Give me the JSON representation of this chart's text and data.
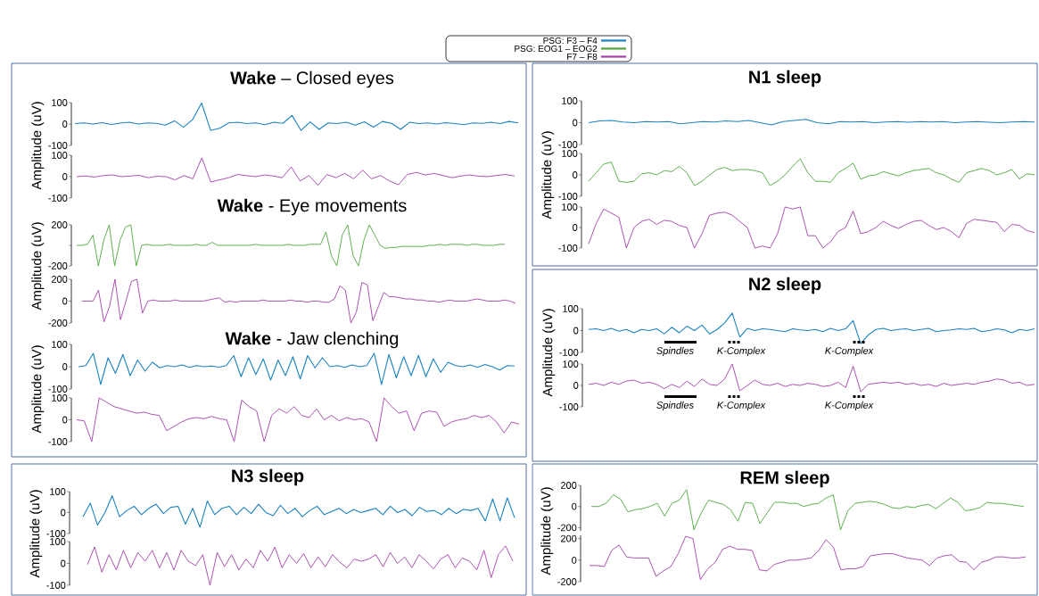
{
  "chart_data": [
    {
      "type": "line",
      "title": "**Wake** – Closed eyes",
      "ylabel": "Amplitude (uV)",
      "legend": "top",
      "tick_labels": "y",
      "ylim": [
        -100,
        100
      ],
      "yticks": [
        -100,
        0,
        100
      ],
      "categories": [
        null,
        null,
        null,
        null,
        null,
        null,
        null,
        null,
        null,
        null,
        null,
        null,
        null,
        null,
        null,
        null,
        null,
        null,
        null,
        null,
        null,
        null,
        null,
        null,
        null,
        null,
        null,
        null,
        null,
        null,
        null,
        null,
        null,
        null,
        null,
        null,
        null,
        null,
        null,
        null,
        null,
        null,
        null,
        null,
        null,
        null,
        null,
        null,
        null,
        null
      ],
      "series": [
        {
          "name": "PSG: F3 – F4",
          "color": "#1a82c2",
          "values": [
            2,
            5,
            0,
            6,
            -2,
            4,
            8,
            0,
            5,
            3,
            -5,
            15,
            -15,
            20,
            98,
            -30,
            -20,
            5,
            8,
            2,
            5,
            -3,
            8,
            3,
            40,
            -30,
            10,
            -25,
            5,
            2,
            8,
            -5,
            10,
            -15,
            12,
            3,
            -25,
            8,
            2,
            5,
            0,
            6,
            2,
            -3,
            5,
            3,
            8,
            2,
            12,
            5
          ]
        }
      ]
    },
    {
      "type": "line",
      "tick_labels": "y",
      "ylim": [
        -100,
        100
      ],
      "yticks": [
        -100,
        0,
        100
      ],
      "categories": [
        null,
        null,
        null,
        null,
        null,
        null,
        null,
        null,
        null,
        null,
        null,
        null,
        null,
        null,
        null,
        null,
        null,
        null,
        null,
        null,
        null,
        null,
        null,
        null,
        null,
        null,
        null,
        null,
        null,
        null,
        null,
        null,
        null,
        null,
        null,
        null,
        null,
        null,
        null,
        null,
        null,
        null,
        null,
        null,
        null,
        null,
        null,
        null,
        null,
        null
      ],
      "series": [
        {
          "color": "#a23fa8",
          "values": [
            0,
            3,
            -2,
            5,
            8,
            0,
            3,
            6,
            -5,
            2,
            0,
            -15,
            5,
            -10,
            88,
            -25,
            -15,
            -5,
            10,
            5,
            0,
            8,
            3,
            -5,
            45,
            -20,
            5,
            -40,
            10,
            -5,
            15,
            -10,
            30,
            -10,
            5,
            -20,
            -38,
            10,
            20,
            8,
            15,
            5,
            -5,
            3,
            8,
            2,
            0,
            6,
            10,
            3
          ]
        }
      ]
    },
    {
      "type": "line",
      "title": "**Wake** - Eye movements",
      "ylabel": "Amplitude (uV)",
      "legend": "top",
      "tick_labels": "y",
      "ylim": [
        -200,
        200
      ],
      "yticks": [
        -200,
        {
          "value": 0,
          "label": null
        },
        200
      ],
      "categories": [
        null,
        null,
        null,
        null,
        null,
        null,
        null,
        null,
        null,
        null,
        null,
        null,
        null,
        null,
        null,
        null,
        null,
        null,
        null,
        null,
        null,
        null,
        null,
        null,
        null,
        null,
        null,
        null,
        null,
        null,
        null,
        null,
        null,
        null,
        null,
        null,
        null,
        null,
        null,
        null,
        null,
        null,
        null,
        null,
        null,
        null,
        null,
        null,
        null,
        null,
        null,
        null,
        null,
        null,
        null,
        null,
        null,
        null,
        null,
        null,
        null,
        null,
        null,
        null,
        null,
        null,
        null,
        null,
        null,
        null,
        null,
        null,
        null,
        null,
        null,
        null,
        null,
        null,
        null,
        null
      ],
      "series": [
        {
          "name": "PSG: EOG1 – EOG2",
          "color": "#4ea63d",
          "values": [
            0,
            0,
            10,
            100,
            -200,
            50,
            200,
            -200,
            50,
            180,
            200,
            -200,
            0,
            10,
            0,
            0,
            0,
            10,
            0,
            0,
            0,
            0,
            10,
            0,
            0,
            30,
            0,
            0,
            0,
            0,
            0,
            0,
            0,
            10,
            0,
            0,
            0,
            0,
            0,
            10,
            0,
            0,
            0,
            10,
            10,
            10,
            130,
            -100,
            -200,
            100,
            200,
            -100,
            -200,
            50,
            200,
            100,
            0,
            -30,
            -20,
            -20,
            -10,
            -10,
            -10,
            -10,
            -10,
            0,
            0,
            10,
            0,
            10,
            10,
            10,
            0,
            10,
            10,
            0,
            0,
            0,
            10,
            10
          ]
        }
      ]
    },
    {
      "type": "line",
      "legend": "top",
      "tick_labels": "y",
      "ylim": [
        -200,
        200
      ],
      "yticks": [
        -200,
        0,
        200
      ],
      "categories": [
        null,
        null,
        null,
        null,
        null,
        null,
        null,
        null,
        null,
        null,
        null,
        null,
        null,
        null,
        null,
        null,
        null,
        null,
        null,
        null,
        null,
        null,
        null,
        null,
        null,
        null,
        null,
        null,
        null,
        null,
        null,
        null,
        null,
        null,
        null,
        null,
        null,
        null,
        null,
        null,
        null,
        null,
        null,
        null,
        null,
        null,
        null,
        null,
        null,
        null,
        null,
        null,
        null,
        null,
        null,
        null,
        null,
        null,
        null,
        null,
        null,
        null,
        null,
        null,
        null,
        null,
        null,
        null,
        null,
        null,
        null,
        null,
        null,
        null,
        null,
        null,
        null,
        null,
        null,
        null
      ],
      "series": [
        {
          "name": "F7 – F8",
          "color": "#a23fa8",
          "values": [
            0,
            0,
            0,
            100,
            -190,
            -50,
            200,
            -170,
            0,
            180,
            200,
            -110,
            0,
            10,
            0,
            0,
            0,
            10,
            0,
            0,
            0,
            0,
            0,
            10,
            20,
            30,
            -10,
            0,
            -10,
            0,
            0,
            0,
            0,
            10,
            0,
            0,
            0,
            0,
            10,
            0,
            0,
            -10,
            0,
            0,
            -10,
            -10,
            20,
            140,
            100,
            -200,
            -100,
            170,
            150,
            -180,
            -50,
            80,
            40,
            40,
            30,
            20,
            20,
            10,
            10,
            0,
            0,
            -10,
            0,
            10,
            0,
            0,
            0,
            10,
            20,
            10,
            0,
            0,
            0,
            10,
            0,
            -20
          ]
        }
      ]
    },
    {
      "type": "line",
      "title": "**Wake** - Jaw clenching",
      "ylabel": "Amplitude (uV)",
      "tick_labels": "y",
      "ylim": [
        -100,
        100
      ],
      "yticks": [
        -100,
        0,
        100
      ],
      "categories": [
        null,
        null,
        null,
        null,
        null,
        null,
        null,
        null,
        null,
        null,
        null,
        null,
        null,
        null,
        null,
        null,
        null,
        null,
        null,
        null,
        null,
        null,
        null,
        null,
        null,
        null,
        null,
        null,
        null,
        null,
        null,
        null,
        null,
        null,
        null,
        null,
        null,
        null,
        null,
        null,
        null,
        null,
        null,
        null,
        null,
        null,
        null,
        null,
        null,
        null,
        null,
        null,
        null,
        null,
        null,
        null,
        null,
        null,
        null,
        null
      ],
      "series": [
        {
          "color": "#1a82c2",
          "values": [
            0,
            5,
            60,
            -80,
            40,
            -30,
            55,
            -40,
            30,
            -20,
            20,
            -5,
            5,
            0,
            8,
            -3,
            5,
            0,
            3,
            -2,
            5,
            50,
            -45,
            40,
            -35,
            35,
            -60,
            30,
            -40,
            45,
            -55,
            50,
            -5,
            40,
            0,
            5,
            -3,
            8,
            0,
            5,
            60,
            -80,
            55,
            -50,
            45,
            -40,
            50,
            -45,
            35,
            -25,
            20,
            5,
            0,
            8,
            -3,
            10,
            0,
            -15,
            5,
            3
          ]
        }
      ]
    },
    {
      "type": "line",
      "tick_labels": "y",
      "ylim": [
        -100,
        100
      ],
      "yticks": [
        -100,
        0,
        100
      ],
      "categories": [
        null,
        null,
        null,
        null,
        null,
        null,
        null,
        null,
        null,
        null,
        null,
        null,
        null,
        null,
        null,
        null,
        null,
        null,
        null,
        null,
        null,
        null,
        null,
        null,
        null,
        null,
        null,
        null,
        null,
        null,
        null,
        null,
        null,
        null,
        null,
        null,
        null,
        null,
        null,
        null,
        null,
        null,
        null,
        null,
        null,
        null,
        null,
        null,
        null,
        null,
        null,
        null,
        null,
        null,
        null,
        null,
        null,
        null,
        null,
        null
      ],
      "series": [
        {
          "color": "#a23fa8",
          "values": [
            0,
            -5,
            -100,
            100,
            80,
            60,
            50,
            40,
            30,
            35,
            25,
            20,
            -50,
            -30,
            -10,
            5,
            10,
            5,
            15,
            5,
            0,
            -100,
            90,
            60,
            40,
            -100,
            20,
            50,
            30,
            60,
            20,
            10,
            50,
            0,
            20,
            -5,
            10,
            0,
            5,
            -10,
            -100,
            100,
            60,
            30,
            40,
            -50,
            30,
            40,
            35,
            -30,
            -10,
            0,
            5,
            20,
            10,
            20,
            -10,
            -60,
            -10,
            -20
          ]
        }
      ]
    },
    {
      "type": "line",
      "title": "**N1 sleep**",
      "tick_labels": "y",
      "ylim": [
        -100,
        100
      ],
      "yticks": [
        -100,
        0,
        100
      ],
      "categories": [
        null,
        null,
        null,
        null,
        null,
        null,
        null,
        null,
        null,
        null,
        null,
        null,
        null,
        null,
        null,
        null,
        null,
        null,
        null,
        null,
        null,
        null,
        null,
        null,
        null,
        null,
        null,
        null,
        null,
        null,
        null,
        null,
        null,
        null,
        null,
        null,
        null,
        null,
        null,
        null
      ],
      "series": [
        {
          "color": "#1a82c2",
          "values": [
            0,
            8,
            10,
            3,
            0,
            5,
            3,
            5,
            -5,
            0,
            5,
            3,
            8,
            5,
            10,
            0,
            -10,
            5,
            10,
            15,
            0,
            -5,
            5,
            3,
            5,
            0,
            3,
            5,
            2,
            5,
            3,
            5,
            0,
            3,
            5,
            2,
            0,
            3,
            5,
            3
          ]
        }
      ]
    },
    {
      "type": "line",
      "ylabel": "Amplitude (uV)",
      "tick_labels": "y",
      "ylim": [
        -100,
        100
      ],
      "yticks": [
        -100,
        0,
        100
      ],
      "categories": [
        null,
        null,
        null,
        null,
        null,
        null,
        null,
        null,
        null,
        null,
        null,
        null,
        null,
        null,
        null,
        null,
        null,
        null,
        null,
        null,
        null,
        null,
        null,
        null,
        null,
        null,
        null,
        null,
        null,
        null,
        null,
        null,
        null,
        null,
        null,
        null,
        null,
        null,
        null,
        null,
        null,
        null,
        null,
        null,
        null,
        null,
        null,
        null,
        null,
        null,
        null,
        null,
        null,
        null,
        null,
        null,
        null,
        null,
        null,
        null
      ],
      "series": [
        {
          "color": "#4ea63d",
          "values": [
            -30,
            10,
            50,
            60,
            -30,
            -35,
            -30,
            5,
            10,
            0,
            20,
            15,
            40,
            10,
            -50,
            -30,
            0,
            25,
            35,
            20,
            25,
            25,
            20,
            10,
            -50,
            -30,
            0,
            40,
            75,
            10,
            -30,
            -30,
            -35,
            10,
            30,
            55,
            -20,
            -5,
            0,
            15,
            5,
            -5,
            10,
            20,
            25,
            30,
            10,
            0,
            -20,
            -35,
            10,
            20,
            30,
            20,
            0,
            10,
            25,
            -20,
            5,
            0
          ]
        }
      ]
    },
    {
      "type": "line",
      "tick_labels": "y",
      "ylim": [
        -100,
        100
      ],
      "yticks": [
        -100,
        0,
        100
      ],
      "categories": [
        null,
        null,
        null,
        null,
        null,
        null,
        null,
        null,
        null,
        null,
        null,
        null,
        null,
        null,
        null,
        null,
        null,
        null,
        null,
        null,
        null,
        null,
        null,
        null,
        null,
        null,
        null,
        null,
        null,
        null,
        null,
        null,
        null,
        null,
        null,
        null,
        null,
        null,
        null,
        null,
        null,
        null,
        null,
        null,
        null,
        null,
        null,
        null,
        null,
        null,
        null,
        null,
        null,
        null,
        null,
        null,
        null,
        null,
        null,
        null
      ],
      "series": [
        {
          "color": "#a23fa8",
          "values": [
            -80,
            20,
            90,
            70,
            50,
            -100,
            0,
            30,
            40,
            15,
            35,
            30,
            10,
            0,
            -100,
            -30,
            60,
            70,
            75,
            60,
            30,
            0,
            -100,
            -90,
            -100,
            -30,
            100,
            90,
            100,
            -40,
            -40,
            -100,
            -70,
            -20,
            0,
            80,
            -30,
            -20,
            0,
            30,
            10,
            -5,
            15,
            30,
            35,
            10,
            -10,
            0,
            -20,
            -50,
            20,
            40,
            35,
            30,
            25,
            -20,
            15,
            10,
            -15,
            -25
          ]
        }
      ]
    },
    {
      "type": "line",
      "title": "**N2 sleep**",
      "ylabel": "Amplitude (uV)",
      "tick_labels": "y",
      "ylim": [
        -100,
        100
      ],
      "yticks": [
        -100,
        0,
        100
      ],
      "annotations": [
        "Spindles",
        "K-Complex",
        "K-Complex"
      ],
      "categories": [
        null,
        null,
        null,
        null,
        null,
        null,
        null,
        null,
        null,
        null,
        null,
        null,
        null,
        null,
        null,
        null,
        null,
        null,
        null,
        null,
        null,
        null,
        null,
        null,
        null,
        null,
        null,
        null,
        null,
        null,
        null,
        null,
        null,
        null,
        null,
        null,
        null,
        null,
        null,
        null,
        null,
        null,
        null,
        null,
        null,
        null,
        null,
        null,
        null,
        null,
        null,
        null,
        null,
        null,
        null,
        null,
        null,
        null,
        null,
        null
      ],
      "series": [
        {
          "color": "#1a82c2",
          "values": [
            5,
            8,
            0,
            10,
            -3,
            5,
            -10,
            5,
            0,
            8,
            -15,
            15,
            -10,
            20,
            0,
            25,
            -15,
            5,
            35,
            80,
            -30,
            10,
            0,
            8,
            5,
            0,
            -5,
            8,
            3,
            0,
            5,
            -5,
            10,
            0,
            8,
            45,
            -60,
            -20,
            5,
            10,
            0,
            5,
            8,
            0,
            5,
            10,
            -5,
            0,
            3,
            8,
            5,
            10,
            -5,
            0,
            8,
            3,
            -10,
            5,
            0,
            8
          ]
        }
      ]
    },
    {
      "type": "line",
      "tick_labels": "y",
      "ylim": [
        -100,
        100
      ],
      "yticks": [
        -100,
        0,
        100
      ],
      "annotations": [
        "Spindles",
        "K-Complex",
        "K-Complex"
      ],
      "categories": [
        null,
        null,
        null,
        null,
        null,
        null,
        null,
        null,
        null,
        null,
        null,
        null,
        null,
        null,
        null,
        null,
        null,
        null,
        null,
        null,
        null,
        null,
        null,
        null,
        null,
        null,
        null,
        null,
        null,
        null,
        null,
        null,
        null,
        null,
        null,
        null,
        null,
        null,
        null,
        null,
        null,
        null,
        null,
        null,
        null,
        null,
        null,
        null,
        null,
        null,
        null,
        null,
        null,
        null,
        null,
        null,
        null,
        null,
        null,
        null
      ],
      "series": [
        {
          "color": "#a23fa8",
          "values": [
            5,
            10,
            0,
            15,
            5,
            20,
            25,
            10,
            15,
            5,
            -15,
            5,
            -10,
            20,
            -5,
            30,
            5,
            0,
            30,
            100,
            -25,
            0,
            25,
            5,
            0,
            10,
            -5,
            5,
            0,
            10,
            5,
            -5,
            0,
            15,
            -10,
            90,
            -30,
            5,
            10,
            15,
            10,
            15,
            5,
            10,
            0,
            5,
            -5,
            10,
            0,
            5,
            10,
            5,
            15,
            20,
            30,
            25,
            10,
            15,
            0,
            5
          ]
        }
      ]
    },
    {
      "type": "line",
      "title": "**N3 sleep**",
      "ylabel": "Amplitude (uV)",
      "tick_labels": "y",
      "ylim": [
        -100,
        100
      ],
      "yticks": [
        -100,
        0,
        100
      ],
      "categories": [
        null,
        null,
        null,
        null,
        null,
        null,
        null,
        null,
        null,
        null,
        null,
        null,
        null,
        null,
        null,
        null,
        null,
        null,
        null,
        null,
        null,
        null,
        null,
        null,
        null,
        null,
        null,
        null,
        null,
        null,
        null,
        null,
        null,
        null,
        null,
        null,
        null,
        null,
        null,
        null,
        null,
        null,
        null,
        null,
        null,
        null,
        null,
        null,
        null,
        null,
        null,
        null,
        null,
        null,
        null,
        null,
        null,
        null,
        null,
        null
      ],
      "series": [
        {
          "color": "#1a82c2",
          "values": [
            -20,
            45,
            -60,
            0,
            80,
            -20,
            10,
            30,
            -10,
            20,
            40,
            -5,
            25,
            30,
            -55,
            20,
            -70,
            55,
            -10,
            20,
            30,
            -10,
            25,
            -5,
            40,
            0,
            -15,
            35,
            -5,
            20,
            -20,
            10,
            30,
            -10,
            5,
            20,
            -5,
            15,
            0,
            10,
            20,
            -10,
            30,
            0,
            15,
            -15,
            25,
            5,
            10,
            -10,
            20,
            -5,
            15,
            10,
            20,
            -40,
            65,
            -40,
            70,
            -25
          ]
        }
      ]
    },
    {
      "type": "line",
      "tick_labels": "y",
      "ylim": [
        -100,
        100
      ],
      "yticks": [
        -100,
        0,
        100
      ],
      "categories": [
        null,
        null,
        null,
        null,
        null,
        null,
        null,
        null,
        null,
        null,
        null,
        null,
        null,
        null,
        null,
        null,
        null,
        null,
        null,
        null,
        null,
        null,
        null,
        null,
        null,
        null,
        null,
        null,
        null,
        null,
        null,
        null,
        null,
        null,
        null,
        null,
        null,
        null,
        null,
        null,
        null,
        null,
        null,
        null,
        null,
        null,
        null,
        null,
        null,
        null,
        null,
        null,
        null,
        null,
        null,
        null,
        null,
        null,
        null,
        null
      ],
      "series": [
        {
          "color": "#a23fa8",
          "values": [
            -5,
            75,
            -40,
            40,
            -30,
            60,
            -20,
            50,
            10,
            60,
            -20,
            50,
            -30,
            60,
            10,
            -10,
            40,
            -100,
            50,
            -15,
            40,
            -30,
            20,
            -20,
            60,
            10,
            75,
            -20,
            40,
            0,
            45,
            -20,
            30,
            -15,
            40,
            5,
            -20,
            20,
            10,
            20,
            40,
            -15,
            50,
            0,
            30,
            -20,
            40,
            10,
            -25,
            20,
            40,
            -20,
            25,
            10,
            -30,
            60,
            -65,
            40,
            80,
            10
          ]
        }
      ]
    },
    {
      "type": "line",
      "title": "**REM sleep**",
      "ylabel": "Amplitude (uV)",
      "tick_labels": "y",
      "ylim": [
        -230,
        200
      ],
      "yticks": [
        -200,
        0,
        200
      ],
      "categories": [
        null,
        null,
        null,
        null,
        null,
        null,
        null,
        null,
        null,
        null,
        null,
        null,
        null,
        null,
        null,
        null,
        null,
        null,
        null,
        null,
        null,
        null,
        null,
        null,
        null,
        null,
        null,
        null,
        null,
        null,
        null,
        null,
        null,
        null,
        null,
        null,
        null,
        null,
        null,
        null,
        null,
        null,
        null,
        null,
        null,
        null,
        null,
        null,
        null,
        null,
        null,
        null,
        null,
        null,
        null,
        null,
        null,
        null,
        null,
        null
      ],
      "series": [
        {
          "color": "#4ea63d",
          "values": [
            0,
            0,
            30,
            110,
            70,
            -50,
            -30,
            -20,
            0,
            30,
            -90,
            30,
            60,
            160,
            -220,
            -60,
            60,
            40,
            20,
            -30,
            -140,
            40,
            30,
            -160,
            -60,
            40,
            40,
            30,
            30,
            0,
            20,
            30,
            80,
            110,
            -220,
            -40,
            30,
            40,
            50,
            40,
            20,
            -10,
            -20,
            0,
            -10,
            10,
            20,
            -20,
            30,
            80,
            40,
            -40,
            -30,
            -10,
            40,
            30,
            30,
            20,
            10,
            0
          ]
        }
      ]
    },
    {
      "type": "line",
      "tick_labels": "y",
      "ylim": [
        -200,
        230
      ],
      "yticks": [
        -200,
        0,
        200
      ],
      "categories": [
        null,
        null,
        null,
        null,
        null,
        null,
        null,
        null,
        null,
        null,
        null,
        null,
        null,
        null,
        null,
        null,
        null,
        null,
        null,
        null,
        null,
        null,
        null,
        null,
        null,
        null,
        null,
        null,
        null,
        null,
        null,
        null,
        null,
        null,
        null,
        null,
        null,
        null,
        null,
        null,
        null,
        null,
        null,
        null,
        null,
        null,
        null,
        null,
        null,
        null,
        null,
        null,
        null,
        null,
        null,
        null,
        null,
        null,
        null,
        null
      ],
      "series": [
        {
          "color": "#a23fa8",
          "values": [
            -50,
            -50,
            -60,
            90,
            140,
            30,
            20,
            20,
            20,
            -150,
            -100,
            -60,
            60,
            220,
            200,
            -180,
            -80,
            -20,
            100,
            130,
            100,
            100,
            90,
            -90,
            -100,
            -40,
            -20,
            0,
            0,
            10,
            20,
            90,
            190,
            120,
            -90,
            -80,
            -80,
            -60,
            40,
            50,
            60,
            60,
            40,
            20,
            10,
            0,
            -50,
            20,
            40,
            50,
            -10,
            -20,
            -90,
            -20,
            0,
            30,
            30,
            20,
            20,
            30
          ]
        }
      ]
    }
  ]
}
